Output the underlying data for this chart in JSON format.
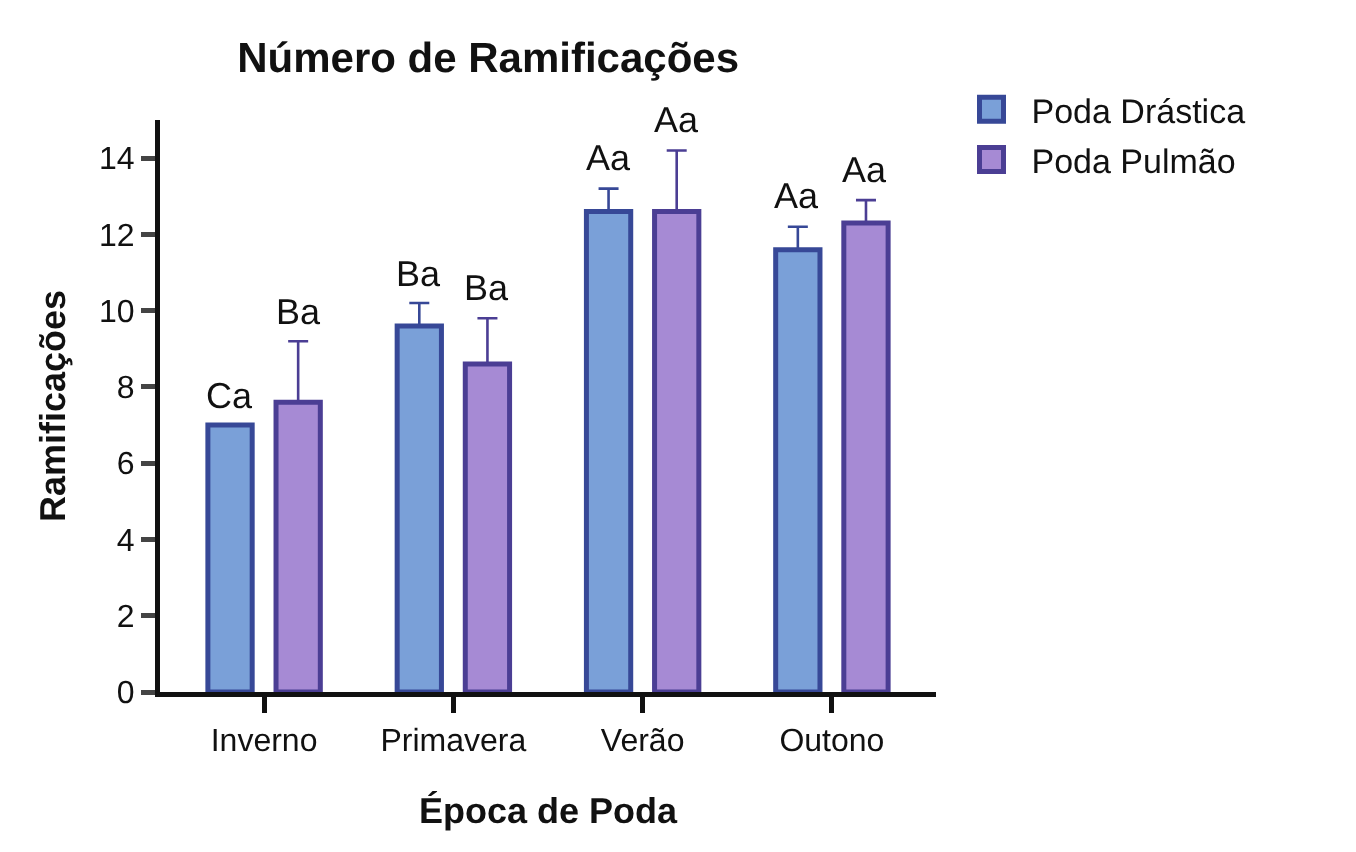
{
  "chart_data": {
    "type": "bar",
    "title": "Número de Ramificações",
    "xlabel": "Época de Poda",
    "ylabel": "Ramificações",
    "categories": [
      "Inverno",
      "Primavera",
      "Verão",
      "Outono"
    ],
    "series": [
      {
        "name": "Poda Drástica",
        "color": "#7aa0d8",
        "values": [
          7.0,
          9.6,
          12.6,
          11.6
        ],
        "errors": [
          null,
          [
            9.6,
            10.2
          ],
          [
            12.6,
            13.2
          ],
          [
            11.6,
            12.2
          ]
        ],
        "value_labels": [
          "Ca",
          "Ba",
          "Aa",
          "Aa"
        ]
      },
      {
        "name": "Poda Pulmão",
        "color": "#a68ad4",
        "values": [
          7.6,
          8.6,
          12.6,
          12.3
        ],
        "errors": [
          [
            7.6,
            9.2
          ],
          [
            8.6,
            9.8
          ],
          [
            12.6,
            14.2
          ],
          [
            12.3,
            12.9
          ]
        ],
        "value_labels": [
          "Ba",
          "Ba",
          "Aa",
          "Aa"
        ]
      }
    ],
    "ylim": [
      0,
      15
    ],
    "yticks": [
      0,
      2,
      4,
      6,
      8,
      10,
      12,
      14
    ],
    "grid": false,
    "legend": "top right"
  }
}
